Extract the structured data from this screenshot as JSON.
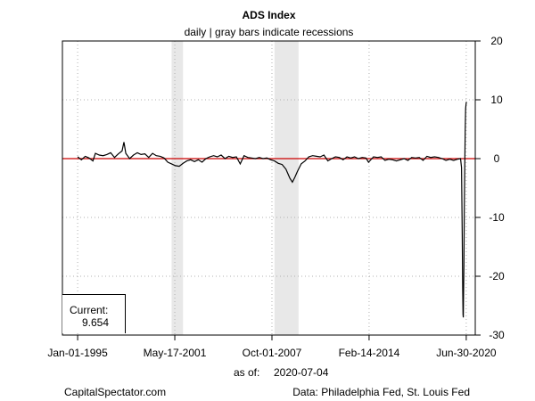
{
  "header": {
    "title": "ADS Index",
    "subtitle": "daily | gray bars indicate recessions"
  },
  "colors": {
    "series": "#000000",
    "zero_line": "#cc0000",
    "recession_band": "#e8e8e8",
    "grid": "#b0b0b0"
  },
  "current": {
    "label": "Current:",
    "value": "9.654"
  },
  "as_of": {
    "label": "as of:",
    "date": "2020-07-04"
  },
  "footer": {
    "source_left": "CapitalSpectator.com",
    "source_right": "Data: Philadelphia Fed, St. Louis Fed"
  },
  "chart_data": {
    "type": "line",
    "title": "ADS Index",
    "subtitle": "daily | gray bars indicate recessions",
    "x_axis": {
      "kind": "date",
      "ticks": [
        {
          "date": "1995-01-01",
          "label": "Jan-01-1995"
        },
        {
          "date": "2001-05-17",
          "label": "May-17-2001"
        },
        {
          "date": "2007-10-01",
          "label": "Oct-01-2007"
        },
        {
          "date": "2014-02-14",
          "label": "Feb-14-2014"
        },
        {
          "date": "2020-06-30",
          "label": "Jun-30-2020"
        }
      ],
      "range": [
        "1994-01-01",
        "2021-02-01"
      ]
    },
    "y_axis": {
      "position": "right",
      "ticks": [
        20,
        10,
        0,
        -10,
        -20,
        -30
      ],
      "ylim": [
        -30,
        20
      ]
    },
    "grid": true,
    "reference_line": {
      "y": 0
    },
    "recessions": [
      {
        "start": "2001-03-01",
        "end": "2001-11-30"
      },
      {
        "start": "2007-12-01",
        "end": "2009-06-30"
      }
    ],
    "series": [
      {
        "points": [
          [
            "1995-01-01",
            0.3
          ],
          [
            "1995-04-01",
            -0.2
          ],
          [
            "1995-07-01",
            0.4
          ],
          [
            "1995-10-01",
            0.1
          ],
          [
            "1996-01-01",
            -0.4
          ],
          [
            "1996-03-01",
            0.9
          ],
          [
            "1996-06-01",
            0.6
          ],
          [
            "1996-09-01",
            0.5
          ],
          [
            "1996-12-01",
            0.7
          ],
          [
            "1997-03-01",
            1.0
          ],
          [
            "1997-06-01",
            0.2
          ],
          [
            "1997-09-01",
            0.8
          ],
          [
            "1997-12-01",
            1.3
          ],
          [
            "1998-01-15",
            2.8
          ],
          [
            "1998-03-01",
            0.9
          ],
          [
            "1998-06-01",
            0.0
          ],
          [
            "1998-09-01",
            0.6
          ],
          [
            "1998-12-01",
            1.0
          ],
          [
            "1999-03-01",
            0.7
          ],
          [
            "1999-06-01",
            0.8
          ],
          [
            "1999-09-01",
            0.2
          ],
          [
            "1999-12-01",
            0.9
          ],
          [
            "2000-03-01",
            0.5
          ],
          [
            "2000-06-01",
            0.4
          ],
          [
            "2000-09-01",
            0.1
          ],
          [
            "2000-12-01",
            -0.6
          ],
          [
            "2001-03-01",
            -0.9
          ],
          [
            "2001-06-01",
            -1.2
          ],
          [
            "2001-09-01",
            -1.3
          ],
          [
            "2001-12-01",
            -0.8
          ],
          [
            "2002-03-01",
            -0.4
          ],
          [
            "2002-06-01",
            -0.2
          ],
          [
            "2002-09-01",
            -0.5
          ],
          [
            "2002-12-01",
            -0.2
          ],
          [
            "2003-03-01",
            -0.6
          ],
          [
            "2003-06-01",
            0.0
          ],
          [
            "2003-09-01",
            0.3
          ],
          [
            "2003-12-01",
            0.5
          ],
          [
            "2004-03-01",
            0.3
          ],
          [
            "2004-06-01",
            0.6
          ],
          [
            "2004-09-01",
            0.0
          ],
          [
            "2004-12-01",
            0.4
          ],
          [
            "2005-03-01",
            0.2
          ],
          [
            "2005-06-01",
            0.3
          ],
          [
            "2005-09-01",
            -0.9
          ],
          [
            "2005-12-01",
            0.5
          ],
          [
            "2006-03-01",
            0.2
          ],
          [
            "2006-06-01",
            0.1
          ],
          [
            "2006-09-01",
            0.0
          ],
          [
            "2006-12-01",
            0.2
          ],
          [
            "2007-03-01",
            0.0
          ],
          [
            "2007-06-01",
            0.1
          ],
          [
            "2007-09-01",
            -0.2
          ],
          [
            "2007-12-01",
            -0.4
          ],
          [
            "2008-03-01",
            -0.8
          ],
          [
            "2008-06-01",
            -1.0
          ],
          [
            "2008-09-01",
            -1.8
          ],
          [
            "2008-12-01",
            -3.3
          ],
          [
            "2009-02-01",
            -4.0
          ],
          [
            "2009-04-01",
            -3.2
          ],
          [
            "2009-06-01",
            -2.2
          ],
          [
            "2009-09-01",
            -0.9
          ],
          [
            "2009-12-01",
            -0.4
          ],
          [
            "2010-03-01",
            0.3
          ],
          [
            "2010-06-01",
            0.5
          ],
          [
            "2010-09-01",
            0.4
          ],
          [
            "2010-12-01",
            0.3
          ],
          [
            "2011-03-01",
            0.6
          ],
          [
            "2011-06-01",
            -0.4
          ],
          [
            "2011-09-01",
            0.0
          ],
          [
            "2011-12-01",
            0.3
          ],
          [
            "2012-03-01",
            0.2
          ],
          [
            "2012-06-01",
            -0.2
          ],
          [
            "2012-09-01",
            0.3
          ],
          [
            "2012-12-01",
            0.1
          ],
          [
            "2013-03-01",
            0.3
          ],
          [
            "2013-06-01",
            0.0
          ],
          [
            "2013-09-01",
            0.2
          ],
          [
            "2013-12-01",
            0.1
          ],
          [
            "2014-02-01",
            -0.6
          ],
          [
            "2014-06-01",
            0.3
          ],
          [
            "2014-09-01",
            0.2
          ],
          [
            "2014-12-01",
            0.3
          ],
          [
            "2015-03-01",
            -0.3
          ],
          [
            "2015-06-01",
            -0.1
          ],
          [
            "2015-09-01",
            -0.2
          ],
          [
            "2015-12-01",
            -0.4
          ],
          [
            "2016-03-01",
            -0.2
          ],
          [
            "2016-06-01",
            0.0
          ],
          [
            "2016-09-01",
            -0.3
          ],
          [
            "2016-12-01",
            0.2
          ],
          [
            "2017-03-01",
            0.1
          ],
          [
            "2017-06-01",
            0.2
          ],
          [
            "2017-09-01",
            -0.3
          ],
          [
            "2017-12-01",
            0.4
          ],
          [
            "2018-03-01",
            0.2
          ],
          [
            "2018-06-01",
            0.3
          ],
          [
            "2018-09-01",
            0.2
          ],
          [
            "2018-12-01",
            0.0
          ],
          [
            "2019-03-01",
            -0.3
          ],
          [
            "2019-06-01",
            -0.1
          ],
          [
            "2019-09-01",
            -0.3
          ],
          [
            "2019-12-01",
            -0.1
          ],
          [
            "2020-02-15",
            0.0
          ],
          [
            "2020-03-10",
            -1.5
          ],
          [
            "2020-03-25",
            -13.0
          ],
          [
            "2020-04-05",
            -22.0
          ],
          [
            "2020-04-15",
            -26.5
          ],
          [
            "2020-04-20",
            -27.0
          ],
          [
            "2020-04-25",
            -24.0
          ],
          [
            "2020-05-05",
            -18.0
          ],
          [
            "2020-05-15",
            -9.0
          ],
          [
            "2020-05-25",
            -2.0
          ],
          [
            "2020-06-05",
            4.5
          ],
          [
            "2020-06-15",
            8.5
          ],
          [
            "2020-06-25",
            9.3
          ],
          [
            "2020-07-04",
            9.654
          ]
        ]
      }
    ]
  }
}
